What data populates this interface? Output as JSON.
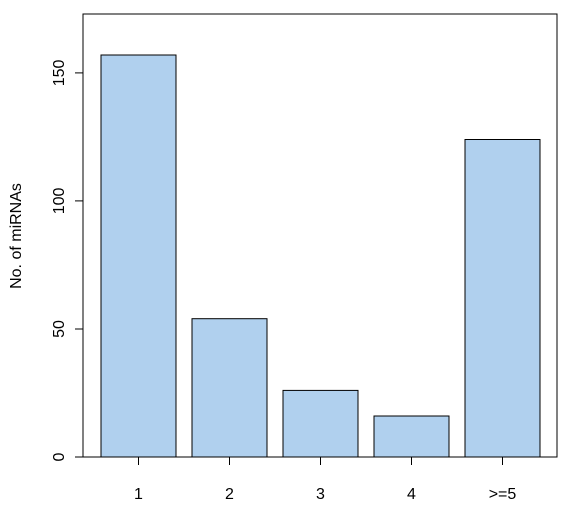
{
  "chart_data": {
    "type": "bar",
    "title": "",
    "xlabel": "",
    "ylabel": "No. of miRNAs",
    "categories": [
      "1",
      "2",
      "3",
      "4",
      ">=5"
    ],
    "values": [
      157,
      54,
      26,
      16,
      124
    ],
    "ylim": [
      0,
      173
    ],
    "yticks": [
      0,
      50,
      100,
      150
    ],
    "grid": false,
    "legend": "none",
    "bar_color": "#b0d0ee",
    "edge_color": "#000000"
  }
}
